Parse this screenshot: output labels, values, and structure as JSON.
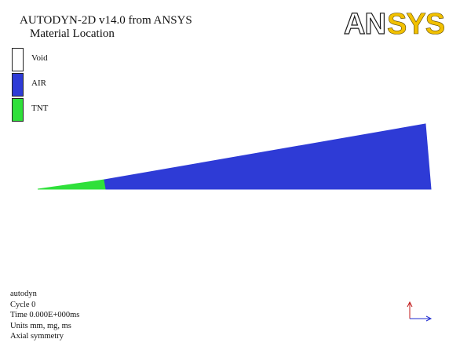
{
  "header": {
    "program": "AUTODYN-2D v14.0 from ANSYS",
    "plot_type": "Material Location"
  },
  "logo": {
    "text": "ANSYS",
    "outline_part": "AN",
    "filled_part": "SYS",
    "color": "#f2c100"
  },
  "legend": {
    "items": [
      {
        "label": "Void",
        "color": "#ffffff"
      },
      {
        "label": "AIR",
        "color": "#2e3bd6"
      },
      {
        "label": "TNT",
        "color": "#2fe03a"
      }
    ]
  },
  "model": {
    "materials": [
      {
        "name": "TNT",
        "color": "#2fe03a"
      },
      {
        "name": "AIR",
        "color": "#2e3bd6"
      }
    ]
  },
  "info": {
    "ident": "autodyn",
    "cycle": "Cycle 0",
    "time": "Time 0.000E+000ms",
    "units": "Units mm, mg, ms",
    "symmetry": "Axial symmetry"
  },
  "axes": {
    "x_color": "#1f2bd0",
    "y_color": "#c01818"
  }
}
